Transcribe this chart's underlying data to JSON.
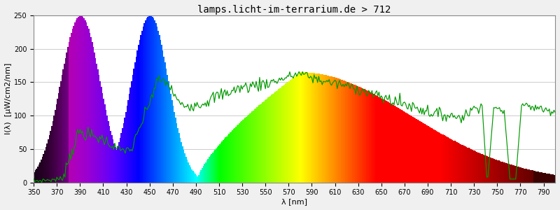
{
  "title": "lamps.licht-im-terrarium.de > 712",
  "xlabel": "λ [nm]",
  "ylabel": "I(λ)  [µW/cm2/nm]",
  "xlim": [
    350,
    800
  ],
  "ylim": [
    0,
    250
  ],
  "yticks": [
    0,
    50,
    100,
    150,
    200,
    250
  ],
  "xticks": [
    350,
    370,
    390,
    410,
    430,
    450,
    470,
    490,
    510,
    530,
    550,
    570,
    590,
    610,
    630,
    650,
    670,
    690,
    710,
    730,
    750,
    770,
    790
  ],
  "background_color": "#f0f0f0",
  "plot_bg_color": "#ffffff",
  "grid_color": "#cccccc",
  "title_fontsize": 10,
  "axis_fontsize": 8,
  "tick_fontsize": 7
}
